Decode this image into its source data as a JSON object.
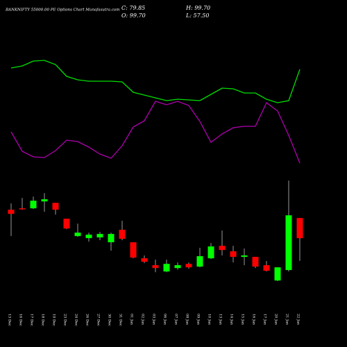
{
  "chart_data": [
    {
      "type": "candlestick",
      "title": "BANKNIFTY 55000.00 PE Options Chart Munafasutra.com",
      "ohlc_labels": {
        "close": "C: 79.85",
        "open": "O: 99.70",
        "high": "H: 99.70",
        "low": "L: 57.50"
      },
      "categories": [
        "13 Dec",
        "16 Dec",
        "17 Dec",
        "18 Dec",
        "19 Dec",
        "23 Dec",
        "24 Dec",
        "26 Dec",
        "27 Dec",
        "30 Dec",
        "31 Dec",
        "01 Jan",
        "02 Jan",
        "03 Jan",
        "06 Jan",
        "07 Jan",
        "08 Jan",
        "09 Jan",
        "10 Jan",
        "13 Jan",
        "14 Jan",
        "15 Jan",
        "16 Jan",
        "17 Jan",
        "20 Jan",
        "21 Jan",
        "22 Jan"
      ],
      "open": [
        107.9,
        109.3,
        109.3,
        116.1,
        114.7,
        99.0,
        81.9,
        79.9,
        80.6,
        75.8,
        88.1,
        75.8,
        60.0,
        53.2,
        47.0,
        50.4,
        54.5,
        51.8,
        60.0,
        72.3,
        66.9,
        61.4,
        61.4,
        53.2,
        38.1,
        48.4,
        99.7
      ],
      "high": [
        114.1,
        119.5,
        120.9,
        124.3,
        114.7,
        99.0,
        94.2,
        85.3,
        86.0,
        85.3,
        97.0,
        75.8,
        62.8,
        58.7,
        58.7,
        55.9,
        55.9,
        70.3,
        75.1,
        87.4,
        72.3,
        69.6,
        61.4,
        57.3,
        51.1,
        136.6,
        99.7
      ],
      "low": [
        81.9,
        107.9,
        108.6,
        105.9,
        103.1,
        88.8,
        81.2,
        76.4,
        77.8,
        67.5,
        77.8,
        60.0,
        55.2,
        46.3,
        46.3,
        48.8,
        49.8,
        51.1,
        59.3,
        62.8,
        55.9,
        53.2,
        50.4,
        47.0,
        37.5,
        47.0,
        57.5
      ],
      "close": [
        103.8,
        108.6,
        116.8,
        118.2,
        107.9,
        89.4,
        85.3,
        83.3,
        84.0,
        84.0,
        79.2,
        60.7,
        56.6,
        50.4,
        54.5,
        53.2,
        51.1,
        62.1,
        71.7,
        68.2,
        61.4,
        62.8,
        51.8,
        47.7,
        51.1,
        102.4,
        79.85
      ],
      "up_color": "#00ff00",
      "down_color": "#ff0000",
      "wick_color": "#9a9a9a",
      "ylim": [
        30,
        145
      ]
    },
    {
      "type": "line",
      "series": [
        {
          "color": "#00e000",
          "values": [
            162,
            165,
            172,
            173,
            167,
            150,
            145,
            143,
            143,
            143,
            142,
            127,
            123,
            119,
            115,
            117,
            116,
            115,
            124,
            133,
            132,
            126,
            126,
            117,
            112,
            115,
            160
          ]
        },
        {
          "color": "#b000b0",
          "values": [
            70,
            42,
            34,
            33,
            43,
            58,
            56,
            48,
            38,
            32,
            50,
            77,
            86,
            114,
            109,
            114,
            108,
            85,
            55,
            67,
            76,
            78,
            78,
            112,
            100,
            65,
            25
          ]
        }
      ],
      "ylim": [
        0,
        220
      ]
    }
  ]
}
